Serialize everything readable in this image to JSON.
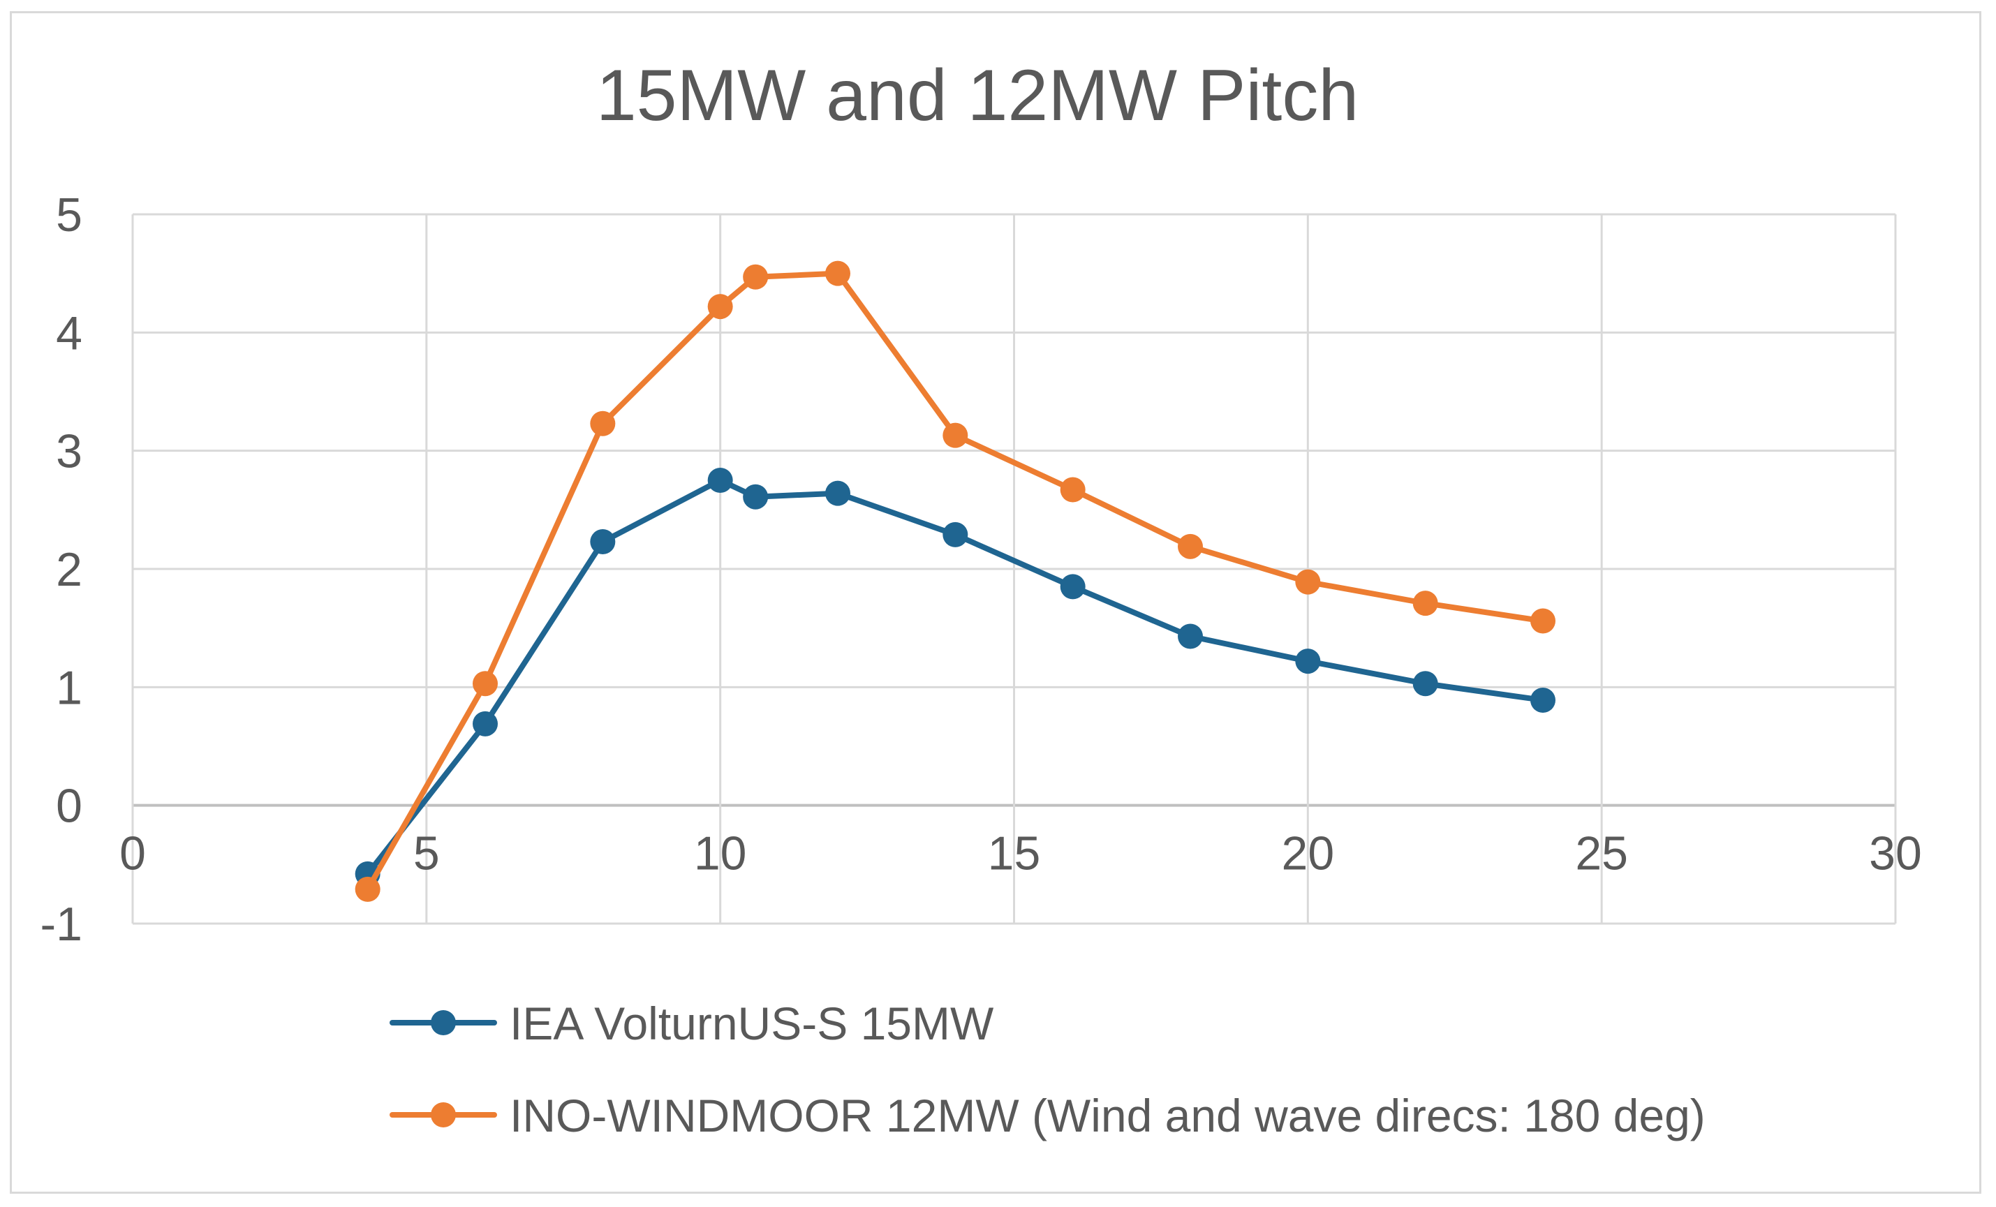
{
  "chart_data": {
    "type": "scatter",
    "title": "15MW and 12MW Pitch",
    "xlabel": "",
    "ylabel": "",
    "xlim": [
      0,
      30
    ],
    "ylim": [
      -1,
      5
    ],
    "x_ticks": [
      0,
      5,
      10,
      15,
      20,
      25,
      30
    ],
    "y_ticks": [
      -1,
      0,
      1,
      2,
      3,
      4,
      5
    ],
    "x_tick_labels": [
      "0",
      "5",
      "10",
      "15",
      "20",
      "25",
      "30"
    ],
    "y_tick_labels": [
      "-1",
      "0",
      "1",
      "2",
      "3",
      "4",
      "5"
    ],
    "grid": true,
    "legend_position": "bottom",
    "series": [
      {
        "name": "IEA VolturnUS-S 15MW",
        "color": "#1f6591",
        "x": [
          4,
          6,
          8,
          10,
          10.6,
          12,
          14,
          16,
          18,
          20,
          22,
          24
        ],
        "y": [
          -0.58,
          0.69,
          2.23,
          2.75,
          2.61,
          2.64,
          2.29,
          1.85,
          1.43,
          1.22,
          1.03,
          0.89
        ]
      },
      {
        "name": "INO-WINDMOOR 12MW (Wind and wave direcs: 180 deg)",
        "color": "#ed7d31",
        "x": [
          4,
          6,
          8,
          10,
          10.6,
          12,
          14,
          16,
          18,
          20,
          22,
          24
        ],
        "y": [
          -0.71,
          1.03,
          3.23,
          4.22,
          4.47,
          4.5,
          3.13,
          2.67,
          2.19,
          1.89,
          1.71,
          1.56
        ]
      }
    ]
  }
}
